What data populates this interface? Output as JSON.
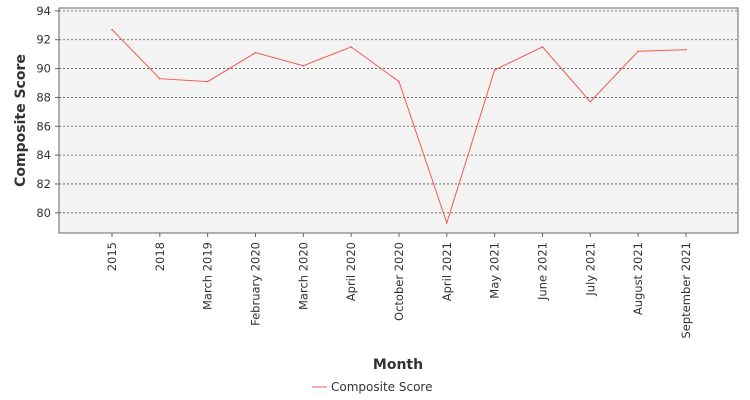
{
  "chart_data": {
    "type": "line",
    "title": "",
    "xlabel": "Month",
    "ylabel": "Composite Score",
    "categories": [
      "2015",
      "2018",
      "March 2019",
      "February 2020",
      "March 2020",
      "April 2020",
      "October 2020",
      "April 2021",
      "May 2021",
      "June 2021",
      "July 2021",
      "August 2021",
      "September 2021"
    ],
    "series": [
      {
        "name": "Composite Score",
        "color": "#f25c54",
        "values": [
          92.7,
          89.3,
          89.1,
          91.1,
          90.2,
          91.5,
          89.1,
          79.3,
          89.9,
          91.5,
          87.7,
          91.2,
          91.3
        ]
      }
    ],
    "ylim": [
      78.6,
      94.2
    ],
    "yticks": [
      80,
      82,
      84,
      86,
      88,
      90,
      92,
      94
    ],
    "grid": true,
    "legend_position": "bottom"
  }
}
